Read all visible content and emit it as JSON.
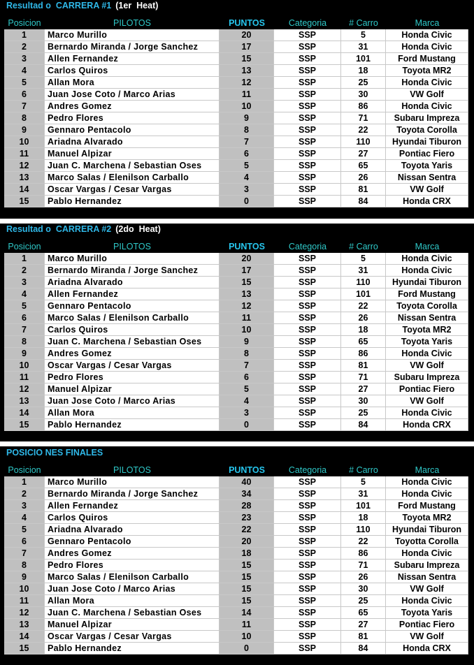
{
  "colors": {
    "title": "#2fb8e8",
    "header": "#2fc8c8",
    "gray_cell": "#c0c0c0",
    "background": "#000000"
  },
  "headers": {
    "posicion": "Posicion",
    "pilotos": "PILOTOS",
    "puntos": "PUNTOS",
    "categoria": "Categoria",
    "carro": "# Carro",
    "marca": "Marca"
  },
  "sections": [
    {
      "title": "Resultad o  CARRERA #1",
      "subtitle": "(1er  Heat)",
      "rows": [
        [
          "1",
          "Marco Murillo",
          "20",
          "SSP",
          "5",
          "Honda Civic"
        ],
        [
          "2",
          "Bernardo Miranda / Jorge Sanchez",
          "17",
          "SSP",
          "31",
          "Honda Civic"
        ],
        [
          "3",
          "Allen Fernandez",
          "15",
          "SSP",
          "101",
          "Ford Mustang"
        ],
        [
          "4",
          "Carlos Quiros",
          "13",
          "SSP",
          "18",
          "Toyota MR2"
        ],
        [
          "5",
          "Allan Mora",
          "12",
          "SSP",
          "25",
          "Honda Civic"
        ],
        [
          "6",
          "Juan Jose Coto / Marco Arias",
          "11",
          "SSP",
          "30",
          "VW Golf"
        ],
        [
          "7",
          "Andres Gomez",
          "10",
          "SSP",
          "86",
          "Honda Civic"
        ],
        [
          "8",
          "Pedro Flores",
          "9",
          "SSP",
          "71",
          "Subaru Impreza"
        ],
        [
          "9",
          "Gennaro Pentacolo",
          "8",
          "SSP",
          "22",
          "Toyota Corolla"
        ],
        [
          "10",
          "Ariadna Alvarado",
          "7",
          "SSP",
          "110",
          "Hyundai Tiburon"
        ],
        [
          "11",
          "Manuel Alpizar",
          "6",
          "SSP",
          "27",
          "Pontiac Fiero"
        ],
        [
          "12",
          "Juan C. Marchena / Sebastian Oses",
          "5",
          "SSP",
          "65",
          "Toyota Yaris"
        ],
        [
          "13",
          "Marco Salas / Elenilson Carballo",
          "4",
          "SSP",
          "26",
          "Nissan Sentra"
        ],
        [
          "14",
          "Oscar Vargas / Cesar Vargas",
          "3",
          "SSP",
          "81",
          "VW Golf"
        ],
        [
          "15",
          "Pablo Hernandez",
          "0",
          "SSP",
          "84",
          "Honda CRX"
        ]
      ]
    },
    {
      "title": "Resultad o  CARRERA #2",
      "subtitle": "(2do  Heat)",
      "rows": [
        [
          "1",
          "Marco Murillo",
          "20",
          "SSP",
          "5",
          "Honda Civic"
        ],
        [
          "2",
          "Bernardo Miranda / Jorge Sanchez",
          "17",
          "SSP",
          "31",
          "Honda Civic"
        ],
        [
          "3",
          "Ariadna Alvarado",
          "15",
          "SSP",
          "110",
          "Hyundai Tiburon"
        ],
        [
          "4",
          "Allen Fernandez",
          "13",
          "SSP",
          "101",
          "Ford Mustang"
        ],
        [
          "5",
          "Gennaro Pentacolo",
          "12",
          "SSP",
          "22",
          "Toyota Corolla"
        ],
        [
          "6",
          "Marco Salas / Elenilson Carballo",
          "11",
          "SSP",
          "26",
          "Nissan Sentra"
        ],
        [
          "7",
          "Carlos Quiros",
          "10",
          "SSP",
          "18",
          "Toyota MR2"
        ],
        [
          "8",
          "Juan C. Marchena / Sebastian Oses",
          "9",
          "SSP",
          "65",
          "Toyota Yaris"
        ],
        [
          "9",
          "Andres Gomez",
          "8",
          "SSP",
          "86",
          "Honda Civic"
        ],
        [
          "10",
          "Oscar Vargas / Cesar Vargas",
          "7",
          "SSP",
          "81",
          "VW Golf"
        ],
        [
          "11",
          "Pedro Flores",
          "6",
          "SSP",
          "71",
          "Subaru Impreza"
        ],
        [
          "12",
          "Manuel Alpizar",
          "5",
          "SSP",
          "27",
          "Pontiac Fiero"
        ],
        [
          "13",
          "Juan Jose Coto / Marco Arias",
          "4",
          "SSP",
          "30",
          "VW Golf"
        ],
        [
          "14",
          "Allan Mora",
          "3",
          "SSP",
          "25",
          "Honda Civic"
        ],
        [
          "15",
          "Pablo Hernandez",
          "0",
          "SSP",
          "84",
          "Honda CRX"
        ]
      ]
    },
    {
      "title": "POSICIO NES FINALES",
      "subtitle": "",
      "rows": [
        [
          "1",
          "Marco Murillo",
          "40",
          "SSP",
          "5",
          "Honda Civic"
        ],
        [
          "2",
          "Bernardo Miranda / Jorge Sanchez",
          "34",
          "SSP",
          "31",
          "Honda Civic"
        ],
        [
          "3",
          "Allen Fernandez",
          "28",
          "SSP",
          "101",
          "Ford Mustang"
        ],
        [
          "4",
          "Carlos Quiros",
          "23",
          "SSP",
          "18",
          "Toyota MR2"
        ],
        [
          "5",
          "Ariadna Alvarado",
          "22",
          "SSP",
          "110",
          "Hyundai Tiburon"
        ],
        [
          "6",
          "Gennaro Pentacolo",
          "20",
          "SSP",
          "22",
          "Toyotta Corolla"
        ],
        [
          "7",
          "Andres Gomez",
          "18",
          "SSP",
          "86",
          "Honda Civic"
        ],
        [
          "8",
          "Pedro Flores",
          "15",
          "SSP",
          "71",
          "Subaru Impreza"
        ],
        [
          "9",
          "Marco Salas / Elenilson Carballo",
          "15",
          "SSP",
          "26",
          "Nissan Sentra"
        ],
        [
          "10",
          "Juan Jose Coto / Marco Arias",
          "15",
          "SSP",
          "30",
          "VW Golf"
        ],
        [
          "11",
          "Allan Mora",
          "15",
          "SSP",
          "25",
          "Honda Civic"
        ],
        [
          "12",
          "Juan C. Marchena / Sebastian Oses",
          "14",
          "SSP",
          "65",
          "Toyota Yaris"
        ],
        [
          "13",
          "Manuel Alpizar",
          "11",
          "SSP",
          "27",
          "Pontiac Fiero"
        ],
        [
          "14",
          "Oscar Vargas / Cesar Vargas",
          "10",
          "SSP",
          "81",
          "VW Golf"
        ],
        [
          "15",
          "Pablo Hernandez",
          "0",
          "SSP",
          "84",
          "Honda CRX"
        ]
      ]
    }
  ]
}
